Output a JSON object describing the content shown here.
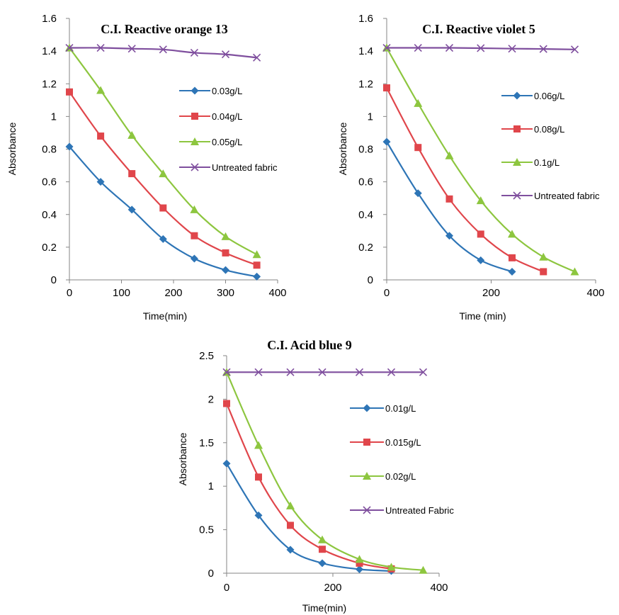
{
  "chart_data": [
    {
      "type": "line",
      "title": "C.I. Reactive orange 13",
      "xlabel": "Time(min)",
      "ylabel": "Absorbance",
      "xlim": [
        0,
        400
      ],
      "ylim": [
        0,
        1.6
      ],
      "xticks": [
        "0",
        "100",
        "200",
        "300",
        "400"
      ],
      "yticks": [
        "0",
        "0.2",
        "0.4",
        "0.6",
        "0.8",
        "1",
        "1.2",
        "1.4",
        "1.6"
      ],
      "grid": false,
      "legend_position": "right",
      "series": [
        {
          "name": "0.03g/L",
          "color": "#2e75b6",
          "marker": "diamond",
          "x": [
            0,
            60,
            120,
            180,
            240,
            300,
            360
          ],
          "values": [
            0.815,
            0.6,
            0.43,
            0.25,
            0.13,
            0.06,
            0.02
          ]
        },
        {
          "name": "0.04g/L",
          "color": "#e0464b",
          "marker": "square",
          "x": [
            0,
            60,
            120,
            180,
            240,
            300,
            360
          ],
          "values": [
            1.15,
            0.88,
            0.65,
            0.44,
            0.27,
            0.165,
            0.09
          ]
        },
        {
          "name": "0.05g/L",
          "color": "#8dc63f",
          "marker": "triangle",
          "x": [
            0,
            60,
            120,
            180,
            240,
            300,
            360
          ],
          "values": [
            1.42,
            1.16,
            0.885,
            0.65,
            0.43,
            0.265,
            0.155
          ]
        },
        {
          "name": "Untreated fabric",
          "color": "#7f4f9e",
          "marker": "x",
          "x": [
            0,
            60,
            120,
            180,
            240,
            300,
            360
          ],
          "values": [
            1.42,
            1.42,
            1.415,
            1.41,
            1.39,
            1.38,
            1.36
          ]
        }
      ]
    },
    {
      "type": "line",
      "title": "C.I. Reactive violet 5",
      "xlabel": "Time (min)",
      "ylabel": "Absorbance",
      "xlim": [
        0,
        400
      ],
      "ylim": [
        0,
        1.6
      ],
      "xticks": [
        "0",
        "200",
        "400"
      ],
      "yticks": [
        "0",
        "0.2",
        "0.4",
        "0.6",
        "0.8",
        "1",
        "1.2",
        "1.4",
        "1.6"
      ],
      "grid": false,
      "legend_position": "right",
      "series": [
        {
          "name": "0.06g/L",
          "color": "#2e75b6",
          "marker": "diamond",
          "x": [
            0,
            60,
            120,
            180,
            240
          ],
          "values": [
            0.845,
            0.53,
            0.27,
            0.12,
            0.05
          ]
        },
        {
          "name": "0.08g/L",
          "color": "#e0464b",
          "marker": "square",
          "x": [
            0,
            60,
            120,
            180,
            240,
            300
          ],
          "values": [
            1.175,
            0.81,
            0.495,
            0.28,
            0.135,
            0.05
          ]
        },
        {
          "name": "0.1g/L",
          "color": "#8dc63f",
          "marker": "triangle",
          "x": [
            0,
            60,
            120,
            180,
            240,
            300,
            360
          ],
          "values": [
            1.42,
            1.08,
            0.76,
            0.485,
            0.28,
            0.14,
            0.05
          ]
        },
        {
          "name": "Untreated fabric",
          "color": "#7f4f9e",
          "marker": "x",
          "x": [
            0,
            60,
            120,
            180,
            240,
            300,
            360
          ],
          "values": [
            1.42,
            1.42,
            1.42,
            1.418,
            1.415,
            1.413,
            1.41
          ]
        }
      ]
    },
    {
      "type": "line",
      "title": "C.I. Acid blue 9",
      "xlabel": "Time(min)",
      "ylabel": "Absorbance",
      "xlim": [
        0,
        400
      ],
      "ylim": [
        0,
        2.5
      ],
      "xticks": [
        "0",
        "200",
        "400"
      ],
      "yticks": [
        "0",
        "0.5",
        "1",
        "1.5",
        "2",
        "2.5"
      ],
      "grid": false,
      "legend_position": "right",
      "series": [
        {
          "name": "0.01g/L",
          "color": "#2e75b6",
          "marker": "diamond",
          "x": [
            0,
            60,
            120,
            180,
            250,
            310
          ],
          "values": [
            1.26,
            0.665,
            0.27,
            0.115,
            0.045,
            0.025
          ]
        },
        {
          "name": "0.015g/L",
          "color": "#e0464b",
          "marker": "square",
          "x": [
            0,
            60,
            120,
            180,
            250,
            310
          ],
          "values": [
            1.95,
            1.105,
            0.55,
            0.275,
            0.115,
            0.05
          ]
        },
        {
          "name": "0.02g/L",
          "color": "#8dc63f",
          "marker": "triangle",
          "x": [
            0,
            60,
            120,
            180,
            250,
            310,
            370
          ],
          "values": [
            2.31,
            1.47,
            0.775,
            0.385,
            0.16,
            0.07,
            0.035
          ]
        },
        {
          "name": "Untreated Fabric",
          "color": "#7f4f9e",
          "marker": "x",
          "x": [
            0,
            60,
            120,
            180,
            250,
            310,
            370
          ],
          "values": [
            2.31,
            2.31,
            2.31,
            2.31,
            2.31,
            2.31,
            2.31
          ]
        }
      ]
    }
  ]
}
